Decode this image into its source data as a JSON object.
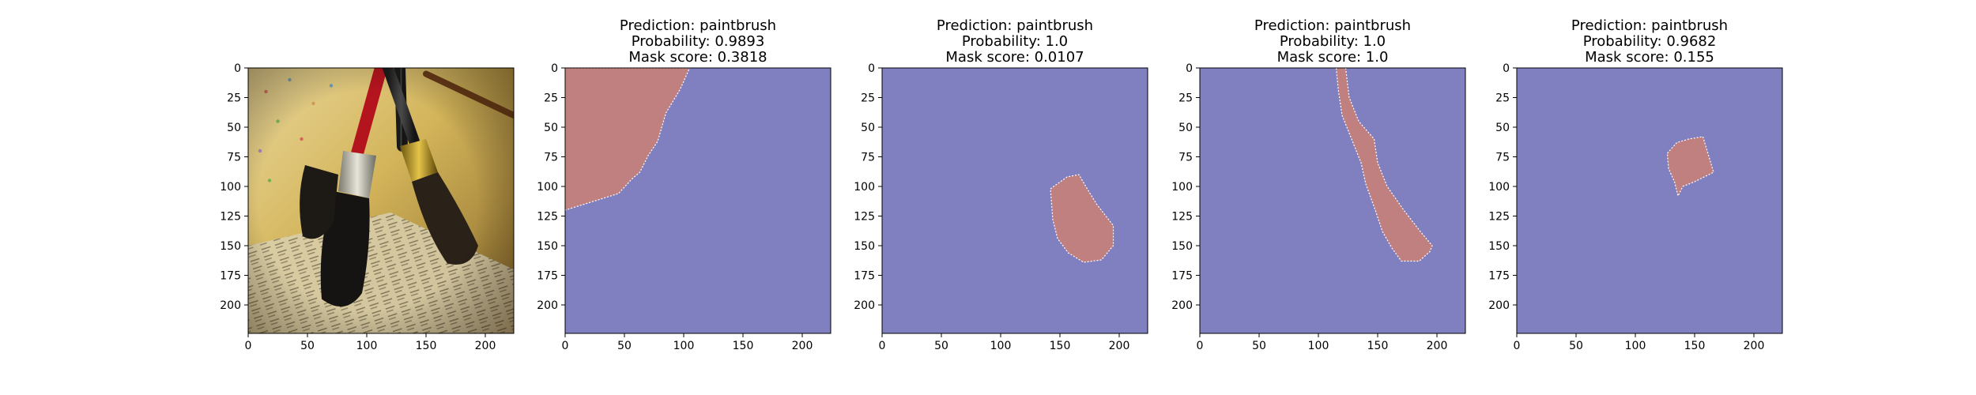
{
  "figure": {
    "background": "#ffffff",
    "mask_background_color": "#8080c0",
    "mask_foreground_color": "#c08080",
    "mask_edge_color": "#ffffff"
  },
  "chart_data": [
    {
      "type": "image",
      "content": "photo of three paintbrushes lying on newspaper",
      "title": [],
      "xlim": [
        0,
        224
      ],
      "ylim": [
        224,
        0
      ],
      "xticks": [
        0,
        50,
        100,
        150,
        200
      ],
      "yticks": [
        0,
        25,
        50,
        75,
        100,
        125,
        150,
        175,
        200
      ],
      "xtick_labels": [
        "0",
        "50",
        "100",
        "150",
        "200"
      ],
      "ytick_labels": [
        "0",
        "25",
        "50",
        "75",
        "100",
        "125",
        "150",
        "175",
        "200"
      ]
    },
    {
      "type": "mask",
      "title": [
        "Prediction: paintbrush",
        "Probability: 0.9893",
        "Mask score: 0.3818"
      ],
      "xlim": [
        0,
        224
      ],
      "ylim": [
        224,
        0
      ],
      "xticks": [
        0,
        50,
        100,
        150,
        200
      ],
      "yticks": [
        0,
        25,
        50,
        75,
        100,
        125,
        150,
        175,
        200
      ],
      "xtick_labels": [
        "0",
        "50",
        "100",
        "150",
        "200"
      ],
      "ytick_labels": [
        "0",
        "25",
        "50",
        "75",
        "100",
        "125",
        "150",
        "175",
        "200"
      ],
      "mask_region": [
        [
          0,
          0
        ],
        [
          105,
          0
        ],
        [
          97,
          18
        ],
        [
          85,
          38
        ],
        [
          78,
          62
        ],
        [
          70,
          74
        ],
        [
          63,
          88
        ],
        [
          56,
          94
        ],
        [
          45,
          106
        ],
        [
          0,
          120
        ]
      ]
    },
    {
      "type": "mask",
      "title": [
        "Prediction: paintbrush",
        "Probability: 1.0",
        "Mask score: 0.0107"
      ],
      "xlim": [
        0,
        224
      ],
      "ylim": [
        224,
        0
      ],
      "xticks": [
        0,
        50,
        100,
        150,
        200
      ],
      "yticks": [
        0,
        25,
        50,
        75,
        100,
        125,
        150,
        175,
        200
      ],
      "xtick_labels": [
        "0",
        "50",
        "100",
        "150",
        "200"
      ],
      "ytick_labels": [
        "0",
        "25",
        "50",
        "75",
        "100",
        "125",
        "150",
        "175",
        "200"
      ],
      "mask_region": [
        [
          142,
          102
        ],
        [
          156,
          92
        ],
        [
          166,
          90
        ],
        [
          173,
          102
        ],
        [
          181,
          115
        ],
        [
          195,
          133
        ],
        [
          195,
          150
        ],
        [
          185,
          162
        ],
        [
          170,
          164
        ],
        [
          157,
          156
        ],
        [
          148,
          144
        ],
        [
          144,
          128
        ]
      ]
    },
    {
      "type": "mask",
      "title": [
        "Prediction: paintbrush",
        "Probability: 1.0",
        "Mask score: 1.0"
      ],
      "xlim": [
        0,
        224
      ],
      "ylim": [
        224,
        0
      ],
      "xticks": [
        0,
        50,
        100,
        150,
        200
      ],
      "yticks": [
        0,
        25,
        50,
        75,
        100,
        125,
        150,
        175,
        200
      ],
      "xtick_labels": [
        "0",
        "50",
        "100",
        "150",
        "200"
      ],
      "ytick_labels": [
        "0",
        "25",
        "50",
        "75",
        "100",
        "125",
        "150",
        "175",
        "200"
      ],
      "mask_region": [
        [
          115,
          0
        ],
        [
          123,
          0
        ],
        [
          126,
          25
        ],
        [
          134,
          45
        ],
        [
          147,
          60
        ],
        [
          150,
          80
        ],
        [
          158,
          100
        ],
        [
          172,
          120
        ],
        [
          186,
          138
        ],
        [
          196,
          150
        ],
        [
          194,
          155
        ],
        [
          185,
          163
        ],
        [
          170,
          163
        ],
        [
          162,
          152
        ],
        [
          154,
          138
        ],
        [
          148,
          120
        ],
        [
          140,
          98
        ],
        [
          136,
          80
        ],
        [
          128,
          60
        ],
        [
          120,
          40
        ],
        [
          117,
          20
        ]
      ]
    },
    {
      "type": "mask",
      "title": [
        "Prediction: paintbrush",
        "Probability: 0.9682",
        "Mask score: 0.155"
      ],
      "xlim": [
        0,
        224
      ],
      "ylim": [
        224,
        0
      ],
      "xticks": [
        0,
        50,
        100,
        150,
        200
      ],
      "yticks": [
        0,
        25,
        50,
        75,
        100,
        125,
        150,
        175,
        200
      ],
      "xtick_labels": [
        "0",
        "50",
        "100",
        "150",
        "200"
      ],
      "ytick_labels": [
        "0",
        "25",
        "50",
        "75",
        "100",
        "125",
        "150",
        "175",
        "200"
      ],
      "mask_region": [
        [
          127,
          72
        ],
        [
          135,
          63
        ],
        [
          145,
          60
        ],
        [
          157,
          58
        ],
        [
          166,
          88
        ],
        [
          150,
          96
        ],
        [
          140,
          100
        ],
        [
          136,
          108
        ],
        [
          133,
          96
        ],
        [
          128,
          85
        ]
      ]
    }
  ]
}
